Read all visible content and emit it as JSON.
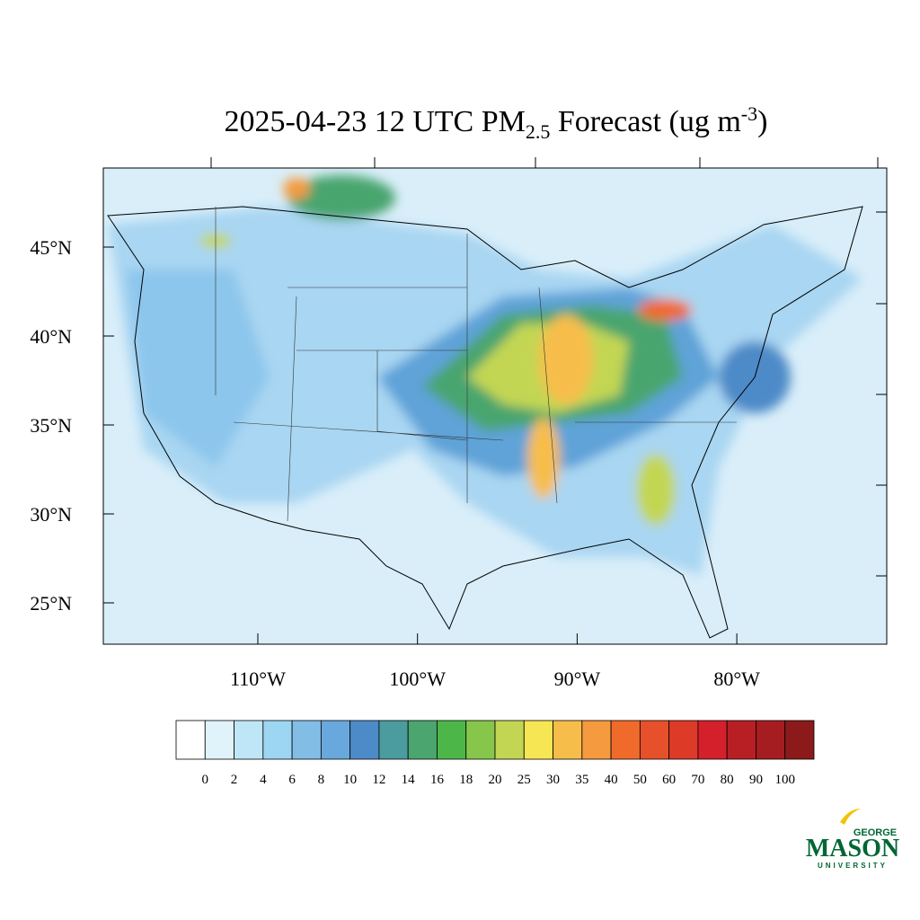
{
  "title": {
    "main": "2025-04-23 12 UTC PM",
    "subscript": "2.5",
    "rest": " Forecast (ug m",
    "superscript": "-3",
    "end": ")"
  },
  "lat_labels": [
    "45°N",
    "40°N",
    "35°N",
    "30°N",
    "25°N"
  ],
  "lon_labels": [
    "110°W",
    "100°W",
    "90°W",
    "80°W"
  ],
  "colorbar": {
    "levels": [
      0,
      2,
      4,
      6,
      8,
      10,
      12,
      14,
      16,
      18,
      20,
      25,
      30,
      35,
      40,
      50,
      60,
      70,
      80,
      90,
      100
    ],
    "colors": [
      "#ffffff",
      "#e0f3fb",
      "#bfe6f7",
      "#9dd6f3",
      "#82bde6",
      "#69a8dc",
      "#4d8ac8",
      "#4b9c9e",
      "#4aa56e",
      "#4cb748",
      "#86c64b",
      "#c3d653",
      "#f7e654",
      "#f7bd4b",
      "#f59a3e",
      "#f06b2b",
      "#e6512c",
      "#dd3a28",
      "#d4202b",
      "#b81f25",
      "#a51d21",
      "#8c1a1b"
    ]
  },
  "logo": {
    "top": "GEORGE",
    "name": "MASON",
    "bottom": "UNIVERSITY"
  }
}
